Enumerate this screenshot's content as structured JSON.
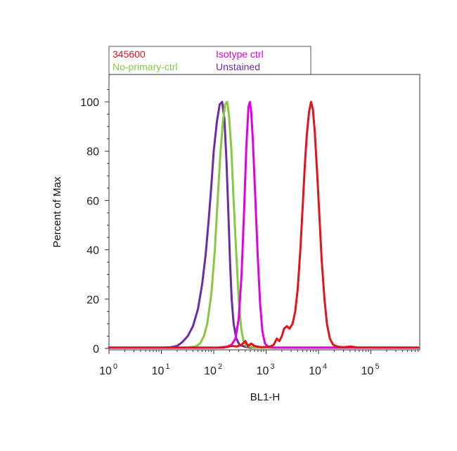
{
  "chart_data": {
    "type": "line",
    "title": "",
    "xlabel": "BL1-H",
    "ylabel": "Percent of Max",
    "xscale": "log",
    "xlim": [
      1,
      800000
    ],
    "ylim": [
      0,
      110
    ],
    "grid": false,
    "legend_position": "top-left, outside plot",
    "x_ticks": [
      {
        "base": "10",
        "exp": "0",
        "value": 1
      },
      {
        "base": "10",
        "exp": "1",
        "value": 10
      },
      {
        "base": "10",
        "exp": "2",
        "value": 100
      },
      {
        "base": "10",
        "exp": "3",
        "value": 1000
      },
      {
        "base": "10",
        "exp": "4",
        "value": 10000
      },
      {
        "base": "10",
        "exp": "5",
        "value": 100000
      }
    ],
    "y_ticks": [
      "0",
      "20",
      "40",
      "60",
      "80",
      "100"
    ],
    "legend": [
      {
        "label": "345600",
        "color": "#e0131f"
      },
      {
        "label": "Isotype ctrl",
        "color": "#e100e1"
      },
      {
        "label": "No-primary-ctrl",
        "color": "#86c83f"
      },
      {
        "label": "Unstained",
        "color": "#6a2ca0"
      }
    ],
    "series": [
      {
        "name": "Unstained",
        "color": "#6a2ca0",
        "points": [
          [
            1,
            0.3
          ],
          [
            10,
            0.3
          ],
          [
            15,
            0.5
          ],
          [
            20,
            1
          ],
          [
            25,
            2.5
          ],
          [
            32,
            5
          ],
          [
            40,
            9
          ],
          [
            50,
            16
          ],
          [
            60,
            26
          ],
          [
            70,
            38
          ],
          [
            80,
            52
          ],
          [
            90,
            66
          ],
          [
            100,
            80
          ],
          [
            115,
            92
          ],
          [
            130,
            99
          ],
          [
            145,
            100
          ],
          [
            160,
            93
          ],
          [
            175,
            76
          ],
          [
            190,
            55
          ],
          [
            205,
            35
          ],
          [
            220,
            20
          ],
          [
            240,
            10
          ],
          [
            270,
            4
          ],
          [
            310,
            1.5
          ],
          [
            380,
            0.8
          ],
          [
            500,
            0.3
          ],
          [
            800000,
            0.3
          ]
        ]
      },
      {
        "name": "No-primary-ctrl",
        "color": "#86c83f",
        "points": [
          [
            1,
            0.3
          ],
          [
            30,
            0.3
          ],
          [
            45,
            0.8
          ],
          [
            55,
            2
          ],
          [
            65,
            5
          ],
          [
            75,
            10
          ],
          [
            90,
            22
          ],
          [
            105,
            40
          ],
          [
            120,
            62
          ],
          [
            135,
            80
          ],
          [
            150,
            92
          ],
          [
            165,
            99
          ],
          [
            180,
            100
          ],
          [
            195,
            95
          ],
          [
            215,
            82
          ],
          [
            240,
            60
          ],
          [
            270,
            38
          ],
          [
            300,
            20
          ],
          [
            335,
            8
          ],
          [
            370,
            3
          ],
          [
            420,
            1
          ],
          [
            600,
            0.3
          ],
          [
            800000,
            0.3
          ]
        ]
      },
      {
        "name": "Isotype ctrl",
        "color": "#e100e1",
        "points": [
          [
            1,
            0.3
          ],
          [
            120,
            0.3
          ],
          [
            180,
            0.7
          ],
          [
            220,
            1.5
          ],
          [
            260,
            4
          ],
          [
            300,
            12
          ],
          [
            340,
            30
          ],
          [
            380,
            56
          ],
          [
            420,
            82
          ],
          [
            460,
            98
          ],
          [
            490,
            100
          ],
          [
            520,
            96
          ],
          [
            560,
            84
          ],
          [
            620,
            62
          ],
          [
            690,
            38
          ],
          [
            770,
            18
          ],
          [
            850,
            7
          ],
          [
            950,
            2
          ],
          [
            1100,
            0.6
          ],
          [
            1400,
            0.3
          ],
          [
            800000,
            0.3
          ]
        ]
      },
      {
        "name": "345600",
        "color": "#e0131f",
        "points": [
          [
            1,
            0.3
          ],
          [
            150,
            0.3
          ],
          [
            220,
            1
          ],
          [
            280,
            0.8
          ],
          [
            340,
            1.5
          ],
          [
            400,
            3
          ],
          [
            450,
            1
          ],
          [
            520,
            2
          ],
          [
            600,
            1
          ],
          [
            800,
            0.5
          ],
          [
            1000,
            0.6
          ],
          [
            1200,
            0.8
          ],
          [
            1400,
            1.5
          ],
          [
            1600,
            4
          ],
          [
            1800,
            3
          ],
          [
            2000,
            5
          ],
          [
            2200,
            8
          ],
          [
            2500,
            9
          ],
          [
            2800,
            8
          ],
          [
            3200,
            10
          ],
          [
            3600,
            15
          ],
          [
            4000,
            24
          ],
          [
            4500,
            40
          ],
          [
            5000,
            58
          ],
          [
            5500,
            75
          ],
          [
            6000,
            87
          ],
          [
            6600,
            96
          ],
          [
            7200,
            100
          ],
          [
            7800,
            97
          ],
          [
            8500,
            88
          ],
          [
            9500,
            70
          ],
          [
            10500,
            52
          ],
          [
            11500,
            36
          ],
          [
            13000,
            20
          ],
          [
            14500,
            10
          ],
          [
            16500,
            4
          ],
          [
            19000,
            1.5
          ],
          [
            23000,
            0.7
          ],
          [
            30000,
            0.5
          ],
          [
            42000,
            0.8
          ],
          [
            55000,
            0.4
          ],
          [
            800000,
            0.3
          ]
        ]
      }
    ]
  }
}
